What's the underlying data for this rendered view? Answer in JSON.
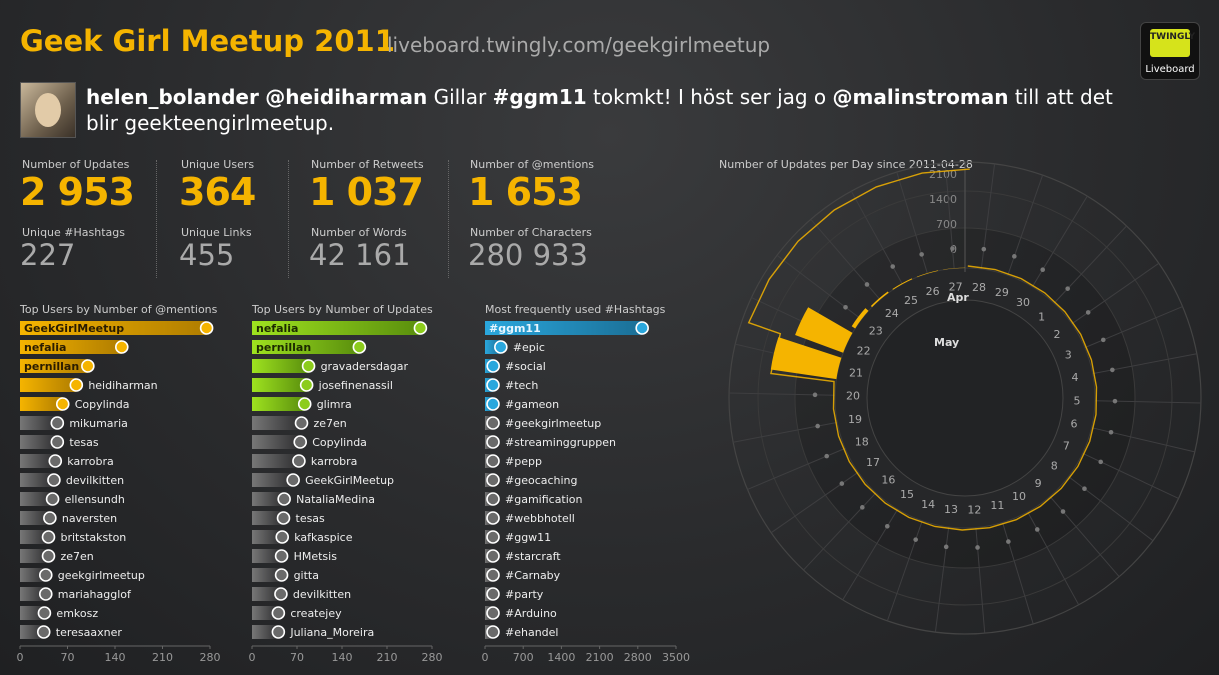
{
  "header": {
    "title": "Geek Girl Meetup 2011",
    "url": "liveboard.twingly.com/geekgirlmeetup",
    "logo_top": "TWINGLY",
    "logo_label": "Liveboard"
  },
  "tweet": {
    "user": "helen_bolander",
    "mention1": "@heidiharman",
    "text1": " Gillar ",
    "hashtag": "#ggm11",
    "text2": " tokmkt! I höst ser jag o ",
    "mention2": "@malinstroman",
    "text3": " till att det blir geekteengirlmeetup."
  },
  "stats": {
    "updates_label": "Number of Updates",
    "updates": "2 953",
    "users_label": "Unique Users",
    "users": "364",
    "retweets_label": "Number of Retweets",
    "retweets": "1 037",
    "mentions_label": "Number of @mentions",
    "mentions": "1 653",
    "hashtags_label": "Unique #Hashtags",
    "hashtags": "227",
    "links_label": "Unique Links",
    "links": "455",
    "words_label": "Number of Words",
    "words": "42 161",
    "chars_label": "Number of Characters",
    "chars": "280 933"
  },
  "colors": {
    "accent": "#f5b400",
    "green": "#8ccc1c",
    "blue": "#2aa7dd",
    "grey": "#777777"
  },
  "chart_data": [
    {
      "type": "bar",
      "title": "Top Users by Number of @mentions",
      "orientation": "horizontal",
      "ticks": [
        0,
        70,
        140,
        210,
        280
      ],
      "xlim": [
        0,
        280
      ],
      "categories": [
        "GeekGirlMeetup",
        "nefalia",
        "pernillan",
        "heidiharman",
        "Copylinda",
        "mikumaria",
        "tesas",
        "karrobra",
        "devilkitten",
        "ellensundh",
        "naversten",
        "britstakston",
        "ze7en",
        "geekgirlmeetup",
        "mariahagglof",
        "emkosz",
        "teresaaxner"
      ],
      "values": [
        275,
        150,
        100,
        83,
        63,
        55,
        55,
        52,
        50,
        48,
        44,
        42,
        42,
        38,
        38,
        36,
        35
      ],
      "highlighted": 5
    },
    {
      "type": "bar",
      "title": "Top Users by Number of Updates",
      "orientation": "horizontal",
      "ticks": [
        0,
        70,
        140,
        210,
        280
      ],
      "xlim": [
        0,
        280
      ],
      "categories": [
        "nefalia",
        "pernillan",
        "gravadersdagar",
        "josefinenassil",
        "glimra",
        "ze7en",
        "Copylinda",
        "karrobra",
        "GeekGirlMeetup",
        "NataliaMedina",
        "tesas",
        "kafkaspice",
        "HMetsis",
        "gitta",
        "devilkitten",
        "createjey",
        "Juliana_Moreira"
      ],
      "values": [
        262,
        167,
        88,
        85,
        82,
        77,
        75,
        73,
        64,
        50,
        49,
        47,
        46,
        46,
        45,
        41,
        41
      ],
      "highlighted": 5
    },
    {
      "type": "bar",
      "title": "Most frequently used #Hashtags",
      "orientation": "horizontal",
      "ticks": [
        0,
        700,
        1400,
        2100,
        2800,
        3500
      ],
      "xlim": [
        0,
        3500
      ],
      "categories": [
        "#ggm11",
        "#epic",
        "#social",
        "#tech",
        "#gameon",
        "#geekgirlmeetup",
        "#streaminggruppen",
        "#pepp",
        "#geocaching",
        "#gamification",
        "#webbhotell",
        "#ggw11",
        "#starcraft",
        "#Carnaby",
        "#party",
        "#Arduino",
        "#ehandel"
      ],
      "values": [
        2880,
        290,
        150,
        140,
        60,
        25,
        20,
        15,
        15,
        15,
        15,
        15,
        15,
        15,
        15,
        15,
        15
      ],
      "highlighted": 5
    },
    {
      "type": "radial-bar",
      "title": "Number of Updates per Day since 2011-04-28",
      "radial_ticks": [
        "2100",
        "1400",
        "700",
        "0"
      ],
      "rlim": [
        0,
        2100
      ],
      "month_labels": [
        "Apr",
        "May"
      ],
      "categories": [
        "28",
        "29",
        "30",
        "1",
        "2",
        "3",
        "4",
        "5",
        "6",
        "7",
        "8",
        "9",
        "10",
        "11",
        "12",
        "13",
        "14",
        "15",
        "16",
        "17",
        "18",
        "19",
        "20",
        "21",
        "22",
        "23",
        "24",
        "25",
        "26",
        "27"
      ],
      "values": [
        0,
        0,
        0,
        0,
        0,
        0,
        0,
        0,
        0,
        0,
        0,
        0,
        0,
        0,
        0,
        0,
        0,
        0,
        0,
        0,
        0,
        0,
        0,
        1450,
        1120,
        90,
        35,
        20,
        10,
        5
      ],
      "cumulative": [
        0,
        0,
        0,
        0,
        0,
        0,
        0,
        0,
        0,
        0,
        0,
        0,
        0,
        0,
        0,
        0,
        0,
        0,
        0,
        0,
        0,
        0,
        0,
        1450,
        2570,
        2660,
        2695,
        2715,
        2725,
        2730
      ]
    }
  ]
}
